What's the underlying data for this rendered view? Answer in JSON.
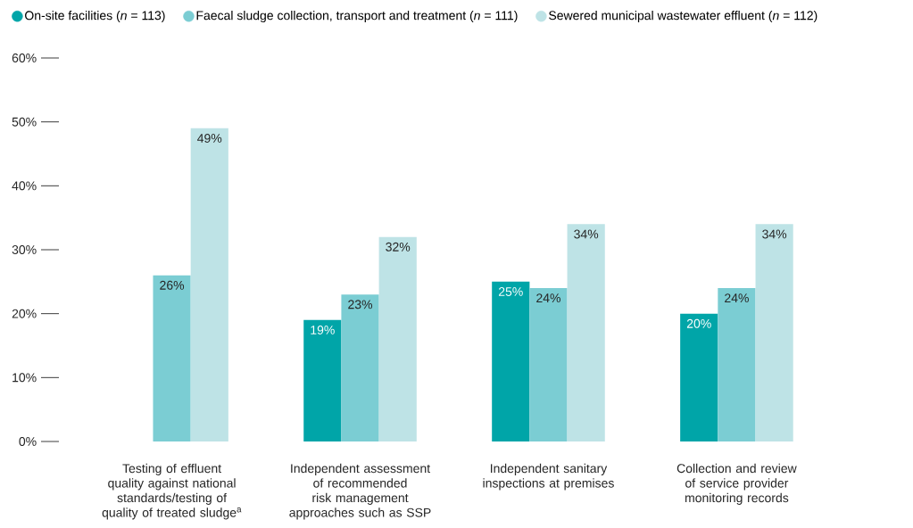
{
  "chart_data": {
    "type": "bar",
    "categories": [
      "Testing of effluent quality against national standards/testing of quality of treated sludge$^{a}$",
      "Independent assessment of recommended risk management approaches such as SSP",
      "Independent sanitary inspections at premises",
      "Collection and review of service provider monitoring records"
    ],
    "series": [
      {
        "name": "On-site facilities (*n* = 113)",
        "color": "#00a5a8",
        "values": [
          null,
          19,
          25,
          20
        ],
        "value_labels": [
          null,
          "19%",
          "25%",
          "20%"
        ]
      },
      {
        "name": "Faecal sludge collection, transport and treatment (*n* = 111)",
        "color": "#7bcdd3",
        "values": [
          26,
          23,
          24,
          24
        ],
        "value_labels": [
          "26%",
          "23%",
          "24%",
          "24%"
        ]
      },
      {
        "name": "Sewered municipal wastewater effluent (*n* = 112)",
        "color": "#bee3e6",
        "values": [
          49,
          32,
          34,
          34
        ],
        "value_labels": [
          "49%",
          "32%",
          "34%",
          "34%"
        ]
      }
    ],
    "ylim": [
      0,
      60
    ],
    "yticks": [
      {
        "value": 0,
        "label": "0%"
      },
      {
        "value": 10,
        "label": "10%"
      },
      {
        "value": 20,
        "label": "20%"
      },
      {
        "value": 30,
        "label": "30%"
      },
      {
        "value": 40,
        "label": "40%"
      },
      {
        "value": 50,
        "label": "50%"
      },
      {
        "value": 60,
        "label": "60%"
      }
    ],
    "legend": "top",
    "grid": false,
    "marker": "circle"
  }
}
